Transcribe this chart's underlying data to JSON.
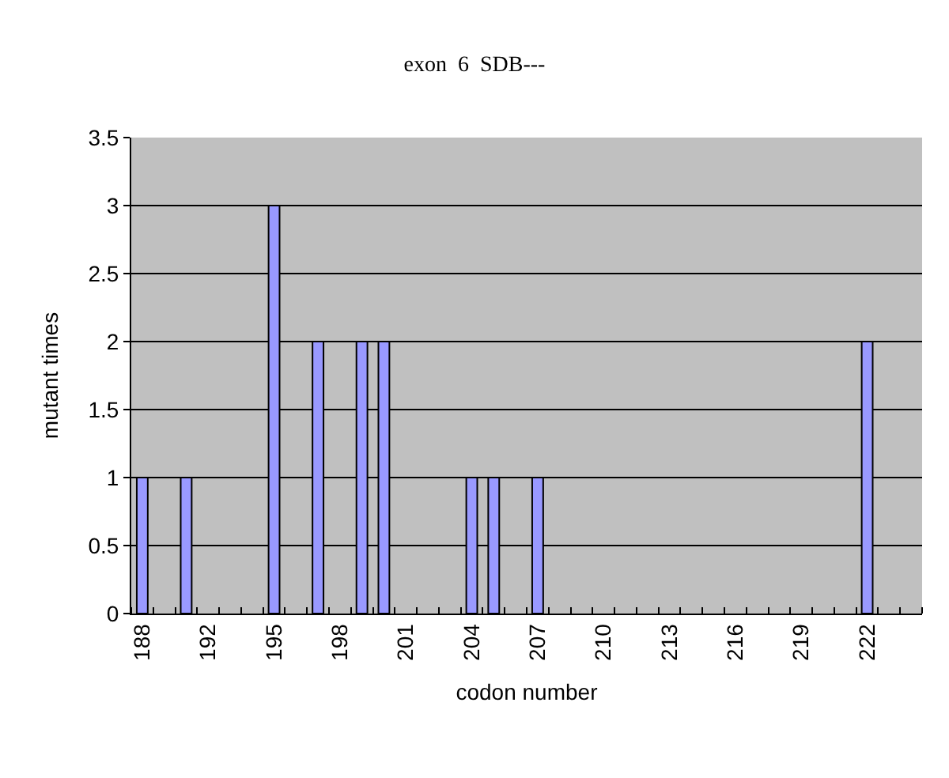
{
  "chart_data": {
    "type": "bar",
    "title": "exon  6  SDB---",
    "xlabel": "codon number",
    "ylabel": "mutant times",
    "categories": [
      "188",
      null,
      null,
      "192",
      null,
      null,
      "195",
      null,
      null,
      "198",
      null,
      null,
      "201",
      null,
      null,
      "204",
      null,
      null,
      "207",
      null,
      null,
      "210",
      null,
      null,
      "213",
      null,
      null,
      "216",
      null,
      null,
      "219",
      null,
      null,
      "222",
      null,
      null
    ],
    "values": [
      1,
      0,
      1,
      0,
      0,
      0,
      3,
      0,
      2,
      0,
      2,
      2,
      0,
      0,
      0,
      1,
      1,
      0,
      1,
      0,
      0,
      0,
      0,
      0,
      0,
      0,
      0,
      0,
      0,
      0,
      0,
      0,
      0,
      2,
      0,
      0
    ],
    "color": "#9999ff",
    "ylim": [
      0,
      3.5
    ],
    "yticks": [
      0,
      0.5,
      1,
      1.5,
      2,
      2.5,
      3,
      3.5
    ],
    "grid": "y"
  }
}
